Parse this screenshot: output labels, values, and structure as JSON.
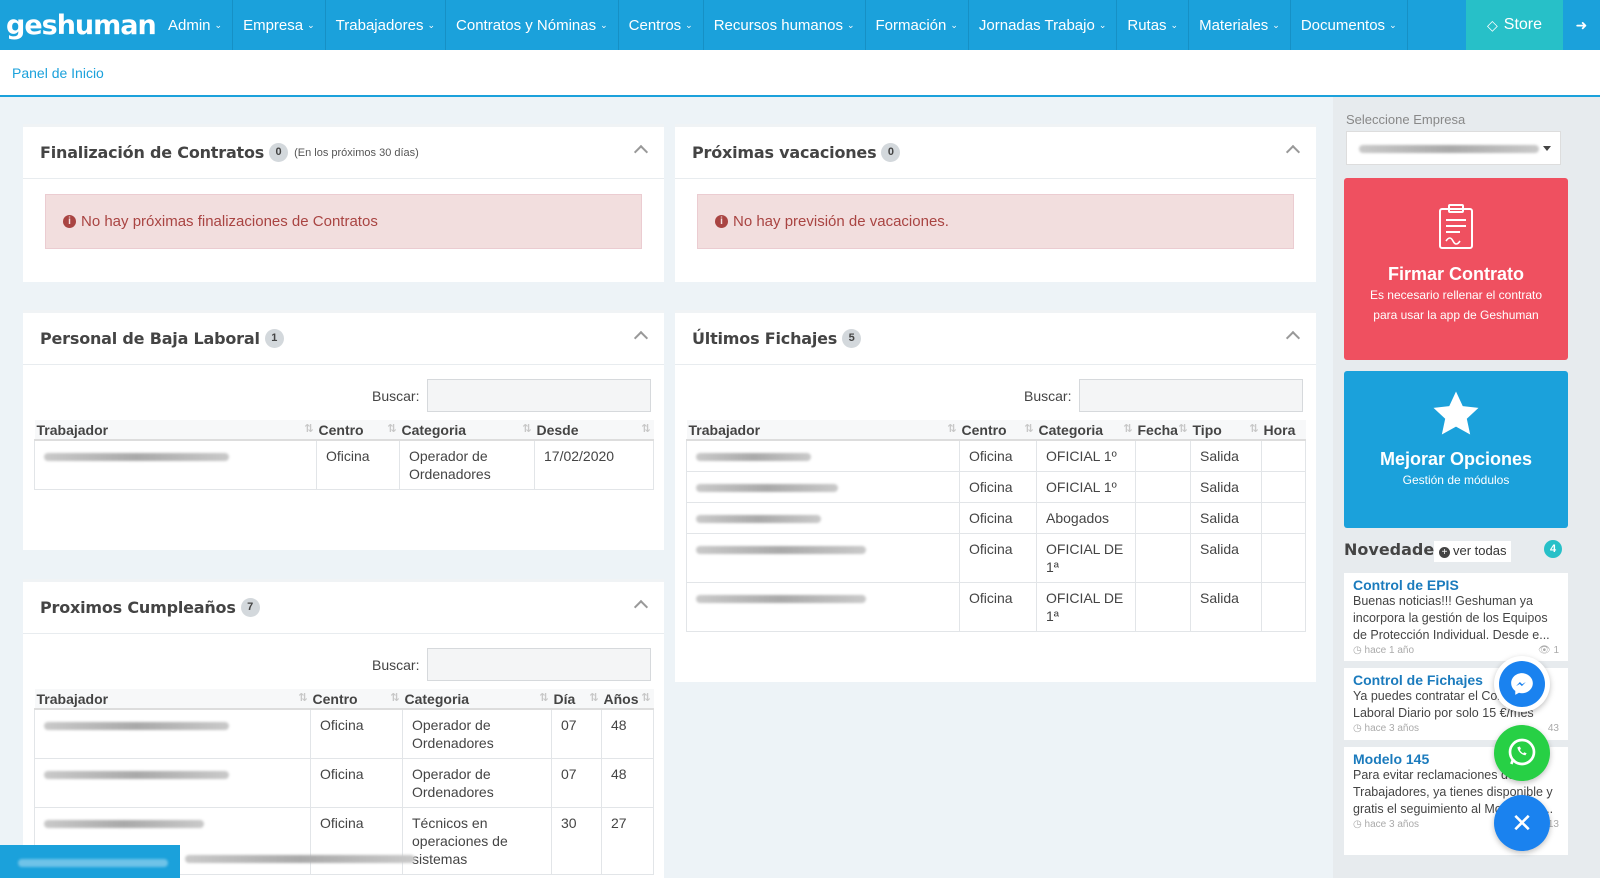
{
  "brand": {
    "logo": "geshuman"
  },
  "nav": [
    {
      "label": "Admin"
    },
    {
      "label": "Empresa"
    },
    {
      "label": "Trabajadores"
    },
    {
      "label": "Contratos y Nóminas"
    },
    {
      "label": "Centros"
    },
    {
      "label": "Recursos humanos"
    },
    {
      "label": "Formación"
    },
    {
      "label": "Jornadas Trabajo"
    },
    {
      "label": "Rutas"
    },
    {
      "label": "Materiales"
    },
    {
      "label": "Documentos"
    }
  ],
  "store": {
    "label": "Store"
  },
  "breadcrumb": "Panel de Inicio",
  "panels": {
    "contracts": {
      "title": "Finalización de Contratos",
      "count": "0",
      "note": "(En los próximos 30 días)",
      "alert": "No hay próximas finalizaciones de Contratos"
    },
    "vacations": {
      "title": "Próximas vacaciones",
      "count": "0",
      "alert": "No hay previsión de vacaciones."
    },
    "leave": {
      "title": "Personal de Baja Laboral",
      "count": "1",
      "search_label": "Buscar:",
      "columns": [
        "Trabajador",
        "Centro",
        "Categoria",
        "Desde"
      ],
      "rows": [
        {
          "centro": "Oficina",
          "categoria": "Operador de Ordenadores",
          "desde": "17/02/2020"
        }
      ]
    },
    "checkins": {
      "title": "Últimos Fichajes",
      "count": "5",
      "search_label": "Buscar:",
      "columns": [
        "Trabajador",
        "Centro",
        "Categoria",
        "Fecha",
        "Tipo",
        "Hora"
      ],
      "rows": [
        {
          "centro": "Oficina",
          "categoria": "OFICIAL 1º",
          "tipo": "Salida"
        },
        {
          "centro": "Oficina",
          "categoria": "OFICIAL 1º",
          "tipo": "Salida"
        },
        {
          "centro": "Oficina",
          "categoria": "Abogados",
          "tipo": "Salida"
        },
        {
          "centro": "Oficina",
          "categoria": "OFICIAL DE 1ª",
          "tipo": "Salida"
        },
        {
          "centro": "Oficina",
          "categoria": "OFICIAL DE 1ª",
          "tipo": "Salida"
        }
      ]
    },
    "birthdays": {
      "title": "Proximos Cumpleaños",
      "count": "7",
      "search_label": "Buscar:",
      "columns": [
        "Trabajador",
        "Centro",
        "Categoria",
        "Día",
        "Años"
      ],
      "rows": [
        {
          "centro": "Oficina",
          "categoria": "Operador de Ordenadores",
          "dia": "07",
          "anos": "48"
        },
        {
          "centro": "Oficina",
          "categoria": "Operador de Ordenadores",
          "dia": "07",
          "anos": "48"
        },
        {
          "centro": "Oficina",
          "categoria": "Técnicos en operaciones de sistemas",
          "dia": "30",
          "anos": "27"
        }
      ]
    }
  },
  "sidebar": {
    "select_label": "Seleccione Empresa",
    "sign_card": {
      "title": "Firmar Contrato",
      "text": "Es necesario rellenar el contrato para usar la app de Geshuman"
    },
    "upgrade_card": {
      "title": "Mejorar Opciones",
      "text": "Gestión de módulos"
    },
    "news_title": "Novedades",
    "news_all": "ver todas",
    "news_count": "4",
    "news": [
      {
        "title": "Control de EPIS",
        "body": "Buenas noticias!!! Geshuman ya incorpora la gestión de los Equipos de Protección Individual. Desde e...",
        "time": "hace 1 año",
        "views": "1"
      },
      {
        "title": "Control de Fichajes",
        "body": "Ya puedes contratar el Control Laboral Diario por solo 15 €/mes",
        "time": "hace 3 años",
        "views": "43"
      },
      {
        "title": "Modelo 145",
        "body": "Para evitar reclamaciones de los Trabajadores, ya tienes disponible y gratis el seguimiento al Modelo 14...",
        "time": "hace 3 años",
        "views": "13"
      }
    ]
  },
  "colors": {
    "primary": "#1ba1db",
    "store": "#27c0c8",
    "danger": "#ef5060",
    "alert_bg": "#f2dede"
  }
}
